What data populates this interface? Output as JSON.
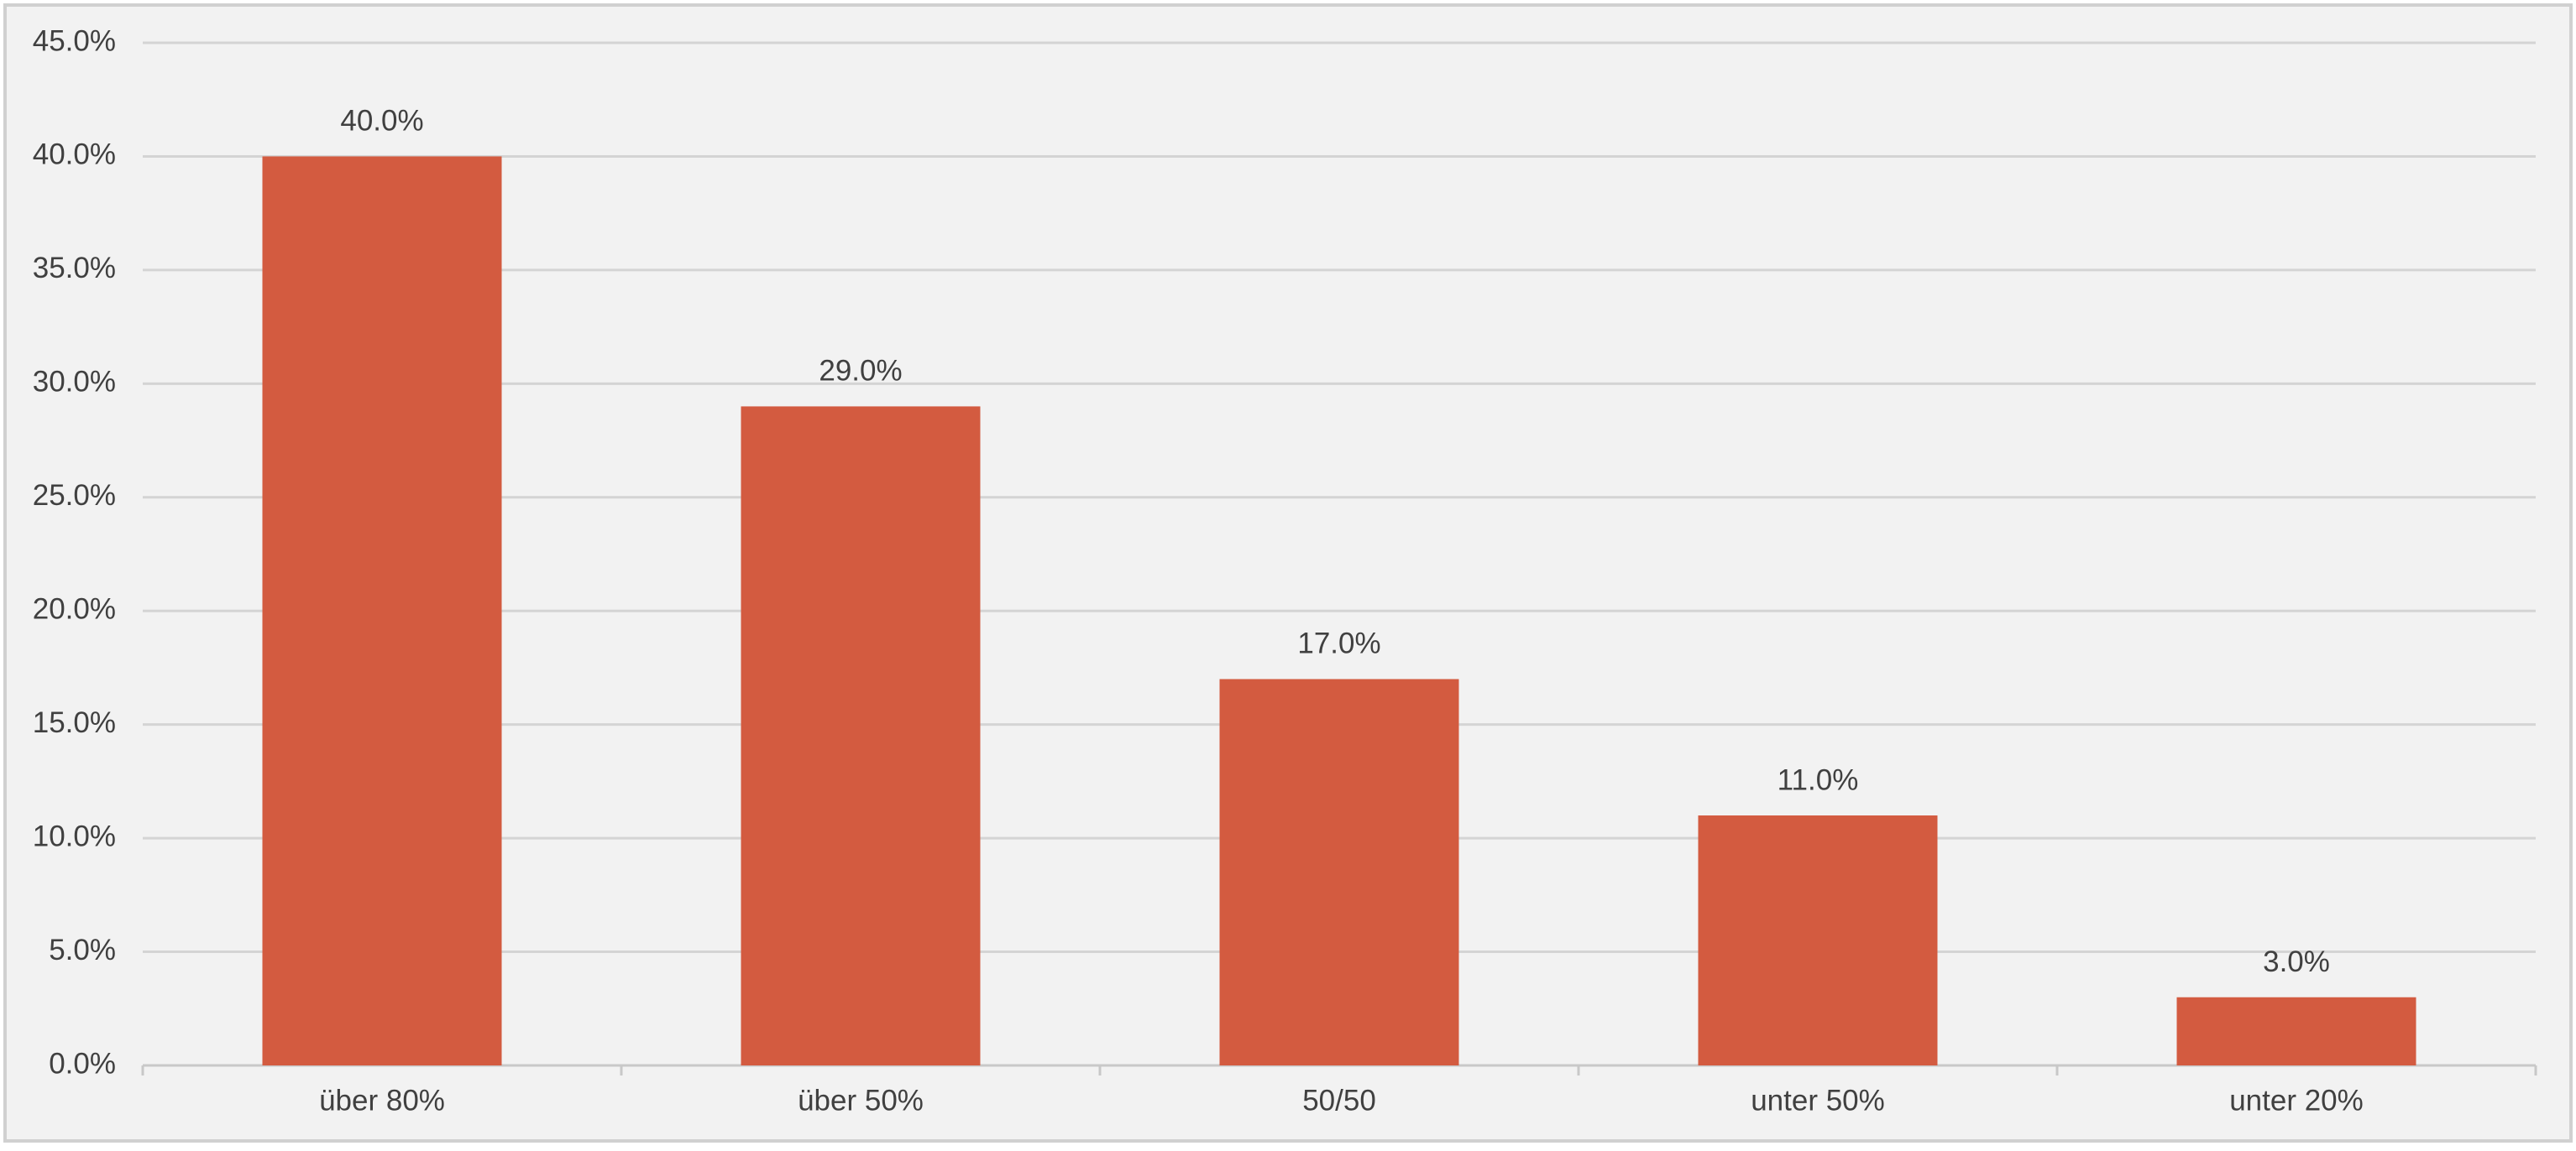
{
  "chart_data": {
    "type": "bar",
    "categories": [
      "über 80%",
      "über 50%",
      "50/50",
      "unter 50%",
      "unter 20%"
    ],
    "values": [
      40,
      29,
      17,
      11,
      3
    ],
    "value_labels": [
      "40.0%",
      "29.0%",
      "17.0%",
      "11.0%",
      "3.0%"
    ],
    "color": "#d35b40",
    "ylim": [
      0,
      45
    ],
    "yticks": [
      {
        "value": 0,
        "label": "0.0%"
      },
      {
        "value": 5,
        "label": "5.0%"
      },
      {
        "value": 10,
        "label": "10.0%"
      },
      {
        "value": 15,
        "label": "15.0%"
      },
      {
        "value": 20,
        "label": "20.0%"
      },
      {
        "value": 25,
        "label": "25.0%"
      },
      {
        "value": 30,
        "label": "30.0%"
      },
      {
        "value": 35,
        "label": "35.0%"
      },
      {
        "value": 40,
        "label": "40.0%"
      },
      {
        "value": 45,
        "label": "45.0%"
      }
    ],
    "grid": true
  }
}
